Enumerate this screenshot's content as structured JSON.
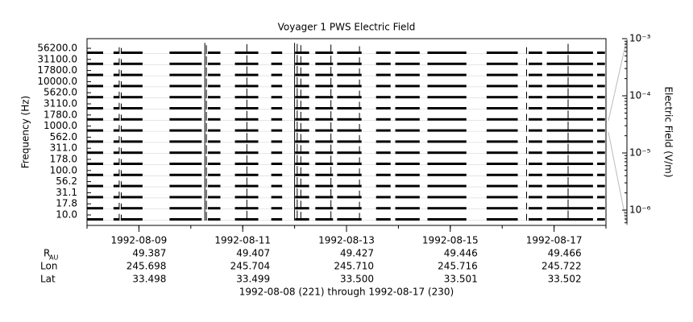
{
  "chart_data": {
    "type": "channels",
    "title": "Voyager 1 PWS Electric Field",
    "ylabel": "Frequency (Hz)",
    "y2label": "Electric Field (V/m)",
    "categories": [
      "10.0",
      "17.8",
      "31.1",
      "56.2",
      "100.0",
      "178.0",
      "311.0",
      "562.0",
      "1000.0",
      "1780.0",
      "3110.0",
      "5620.0",
      "10000.0",
      "17800.0",
      "31100.0",
      "56200.0"
    ],
    "xlim": [
      0,
      10
    ],
    "xticks": [
      {
        "value": 1,
        "label": "1992-08-09"
      },
      {
        "value": 3,
        "label": "1992-08-11"
      },
      {
        "value": 5,
        "label": "1992-08-13"
      },
      {
        "value": 7,
        "label": "1992-08-15"
      },
      {
        "value": 9,
        "label": "1992-08-17"
      }
    ],
    "y2lim": [
      5.4e-07,
      0.001
    ],
    "y2ticks": [
      {
        "value": 0.001,
        "label": "10⁻³"
      },
      {
        "value": 0.0001,
        "label": "10⁻⁴"
      },
      {
        "value": 1e-05,
        "label": "10⁻⁵"
      },
      {
        "value": 1e-06,
        "label": "10⁻⁶"
      }
    ],
    "y2log": true,
    "color": "#000000",
    "background": 2e-06,
    "segments": [
      [
        0,
        0.31
      ],
      [
        0.51,
        0.62
      ],
      [
        0.65,
        1.07
      ],
      [
        1.59,
        2.21
      ],
      [
        2.33,
        2.57
      ],
      [
        2.85,
        3.3
      ],
      [
        3.55,
        3.76
      ],
      [
        4.01,
        4.28
      ],
      [
        4.4,
        4.74
      ],
      [
        4.82,
        5.29
      ],
      [
        5.57,
        5.85
      ],
      [
        5.94,
        6.41
      ],
      [
        6.56,
        7.31
      ],
      [
        7.7,
        8.3
      ],
      [
        8.51,
        8.77
      ],
      [
        8.86,
        9.75
      ],
      [
        9.83,
        9.98
      ]
    ],
    "bursts": [
      {
        "x": 0.62,
        "peak": 5e-05
      },
      {
        "x": 0.66,
        "peak": 3e-05
      },
      {
        "x": 2.27,
        "peak": 0.001
      },
      {
        "x": 2.3,
        "peak": 0.0002
      },
      {
        "x": 3.08,
        "peak": 0.0004
      },
      {
        "x": 4.0,
        "peak": 0.001
      },
      {
        "x": 4.05,
        "peak": 0.0005
      },
      {
        "x": 4.12,
        "peak": 0.0002
      },
      {
        "x": 4.7,
        "peak": 0.0003
      },
      {
        "x": 5.25,
        "peak": 0.0001
      },
      {
        "x": 8.47,
        "peak": 5e-05
      },
      {
        "x": 9.27,
        "peak": 0.0005
      }
    ],
    "ephemeris": {
      "subtitle": "1992-08-08 (221) through 1992-08-17 (230)",
      "rows": [
        {
          "label": "R",
          "subscript": "AU",
          "values": [
            "49.387",
            "49.407",
            "49.427",
            "49.446",
            "49.466"
          ]
        },
        {
          "label": "Lon",
          "values": [
            "245.698",
            "245.704",
            "245.710",
            "245.716",
            "245.722"
          ]
        },
        {
          "label": "Lat",
          "values": [
            "33.498",
            "33.499",
            "33.500",
            "33.501",
            "33.502"
          ]
        }
      ]
    }
  }
}
